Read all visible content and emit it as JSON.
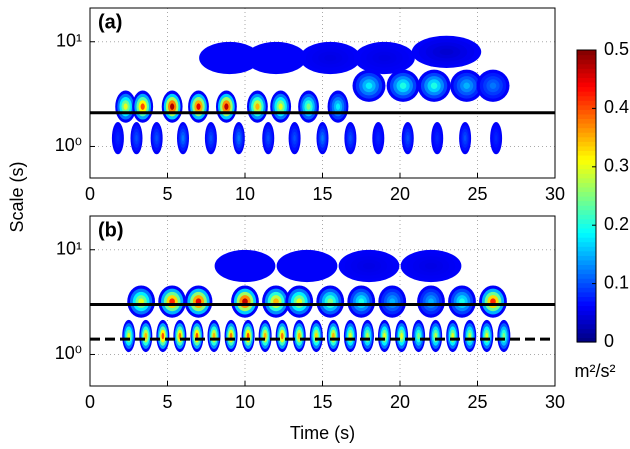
{
  "chart_data": [
    {
      "type": "scalogram",
      "label": "(a)",
      "ylabel": "Scale (s)",
      "ylog": true,
      "grid": true,
      "cmap": "jet",
      "clim": [
        0,
        0.5
      ],
      "xlim": [
        0,
        30
      ],
      "xticks": [
        0,
        5,
        10,
        15,
        20,
        25,
        30
      ],
      "ylim": [
        0.5,
        21
      ],
      "yticks": [
        {
          "value": 1,
          "label": "10⁰"
        },
        {
          "value": 10,
          "label": "10¹"
        }
      ],
      "blobs": {
        "x": [
          2.3,
          3.4,
          5.3,
          7.0,
          8.8,
          10.8,
          12.3,
          14.1,
          16.0,
          18.0,
          20.2,
          22.2,
          24.3,
          26.0,
          1.8,
          3.0,
          4.3,
          6.0,
          7.8,
          9.6,
          11.5,
          13.2,
          15.0,
          16.8,
          18.6,
          20.5,
          22.4,
          24.2,
          26.2,
          9.0,
          12.0,
          15.5,
          19.0,
          23.0
        ],
        "y": [
          2.4,
          2.4,
          2.4,
          2.4,
          2.4,
          2.4,
          2.4,
          2.4,
          2.4,
          3.8,
          3.8,
          3.8,
          3.8,
          3.8,
          1.2,
          1.2,
          1.2,
          1.2,
          1.2,
          1.2,
          1.2,
          1.2,
          1.2,
          1.2,
          1.2,
          1.2,
          1.2,
          1.2,
          1.2,
          7,
          7,
          7,
          7,
          8
        ],
        "values": [
          0.3,
          0.4,
          0.48,
          0.45,
          0.47,
          0.35,
          0.3,
          0.25,
          0.18,
          0.18,
          0.2,
          0.2,
          0.15,
          0.12,
          0.08,
          0.1,
          0.1,
          0.12,
          0.1,
          0.12,
          0.1,
          0.1,
          0.12,
          0.1,
          0.08,
          0.1,
          0.08,
          0.1,
          0.08,
          0.06,
          0.06,
          0.05,
          0.05,
          0.04
        ]
      },
      "lines": [
        {
          "y": 2.1,
          "style": "solid"
        }
      ]
    },
    {
      "type": "scalogram",
      "label": "(b)",
      "xlabel": "Time (s)",
      "ylog": true,
      "grid": true,
      "cmap": "jet",
      "clim": [
        0,
        0.5
      ],
      "xlim": [
        0,
        30
      ],
      "xticks": [
        0,
        5,
        10,
        15,
        20,
        25,
        30
      ],
      "ylim": [
        0.5,
        21
      ],
      "yticks": [
        {
          "value": 1,
          "label": "10⁰"
        },
        {
          "value": 10,
          "label": "10¹"
        }
      ],
      "blobs": {
        "x": [
          3.3,
          5.3,
          7.0,
          10.0,
          12.0,
          13.5,
          15.5,
          17.5,
          19.5,
          22.0,
          24.0,
          26.0,
          2.5,
          3.6,
          4.7,
          5.8,
          6.9,
          8.0,
          9.1,
          10.2,
          11.3,
          12.4,
          13.5,
          14.6,
          15.7,
          16.8,
          17.9,
          19.0,
          20.1,
          21.2,
          22.3,
          23.4,
          24.5,
          25.6,
          26.7,
          10.0,
          14.0,
          18.0,
          22.0
        ],
        "y": [
          3.2,
          3.2,
          3.2,
          3.2,
          3.2,
          3.2,
          3.2,
          3.2,
          3.2,
          3.2,
          3.2,
          3.2,
          1.5,
          1.5,
          1.5,
          1.5,
          1.5,
          1.5,
          1.5,
          1.5,
          1.5,
          1.5,
          1.5,
          1.5,
          1.5,
          1.5,
          1.5,
          1.5,
          1.5,
          1.5,
          1.5,
          1.5,
          1.5,
          1.5,
          1.5,
          7,
          7,
          7,
          7
        ],
        "values": [
          0.3,
          0.42,
          0.45,
          0.47,
          0.35,
          0.3,
          0.25,
          0.2,
          0.15,
          0.15,
          0.2,
          0.42,
          0.3,
          0.35,
          0.4,
          0.38,
          0.4,
          0.35,
          0.38,
          0.4,
          0.35,
          0.38,
          0.35,
          0.33,
          0.35,
          0.3,
          0.28,
          0.3,
          0.3,
          0.25,
          0.28,
          0.3,
          0.28,
          0.3,
          0.25,
          0.06,
          0.06,
          0.05,
          0.05
        ]
      },
      "lines": [
        {
          "y": 3.0,
          "style": "solid"
        },
        {
          "y": 1.4,
          "style": "dashed"
        }
      ]
    },
    {
      "type": "colorbar",
      "cmap": "jet",
      "ylim": [
        0,
        0.5
      ],
      "yticks": [
        0,
        0.1,
        0.2,
        0.3,
        0.4,
        0.5
      ],
      "unit": "m²/s²"
    }
  ]
}
